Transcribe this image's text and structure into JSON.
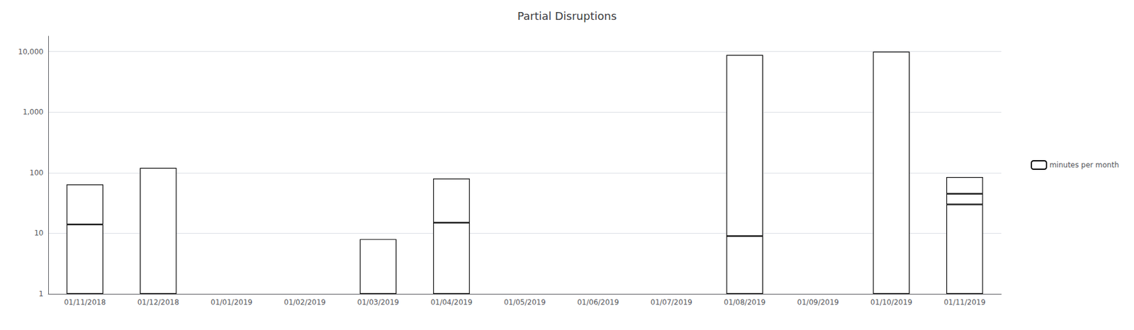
{
  "chart_data": {
    "type": "bar",
    "title": "Partial Disruptions",
    "categories": [
      "01/11/2018",
      "01/12/2018",
      "01/01/2019",
      "01/02/2019",
      "01/03/2019",
      "01/04/2019",
      "01/05/2019",
      "01/06/2019",
      "01/07/2019",
      "01/08/2019",
      "01/09/2019",
      "01/10/2019",
      "01/11/2019"
    ],
    "series": [
      {
        "name": "minutes per month",
        "color": "#ffffff",
        "values": [
          [
            14,
            50
          ],
          [
            120
          ],
          [],
          [],
          [
            8
          ],
          [
            15,
            65
          ],
          [],
          [],
          [],
          [
            9,
            8800
          ],
          [],
          [
            10000
          ],
          [
            30,
            15,
            40
          ]
        ]
      }
    ],
    "stacked": true,
    "log": "y",
    "ylim": [
      1,
      18000
    ],
    "yticks": [
      1,
      10,
      100,
      {
        "value": 1000,
        "label": "1,000"
      },
      {
        "value": 10000,
        "label": "10,000"
      }
    ],
    "grid": true,
    "legend": "right"
  }
}
